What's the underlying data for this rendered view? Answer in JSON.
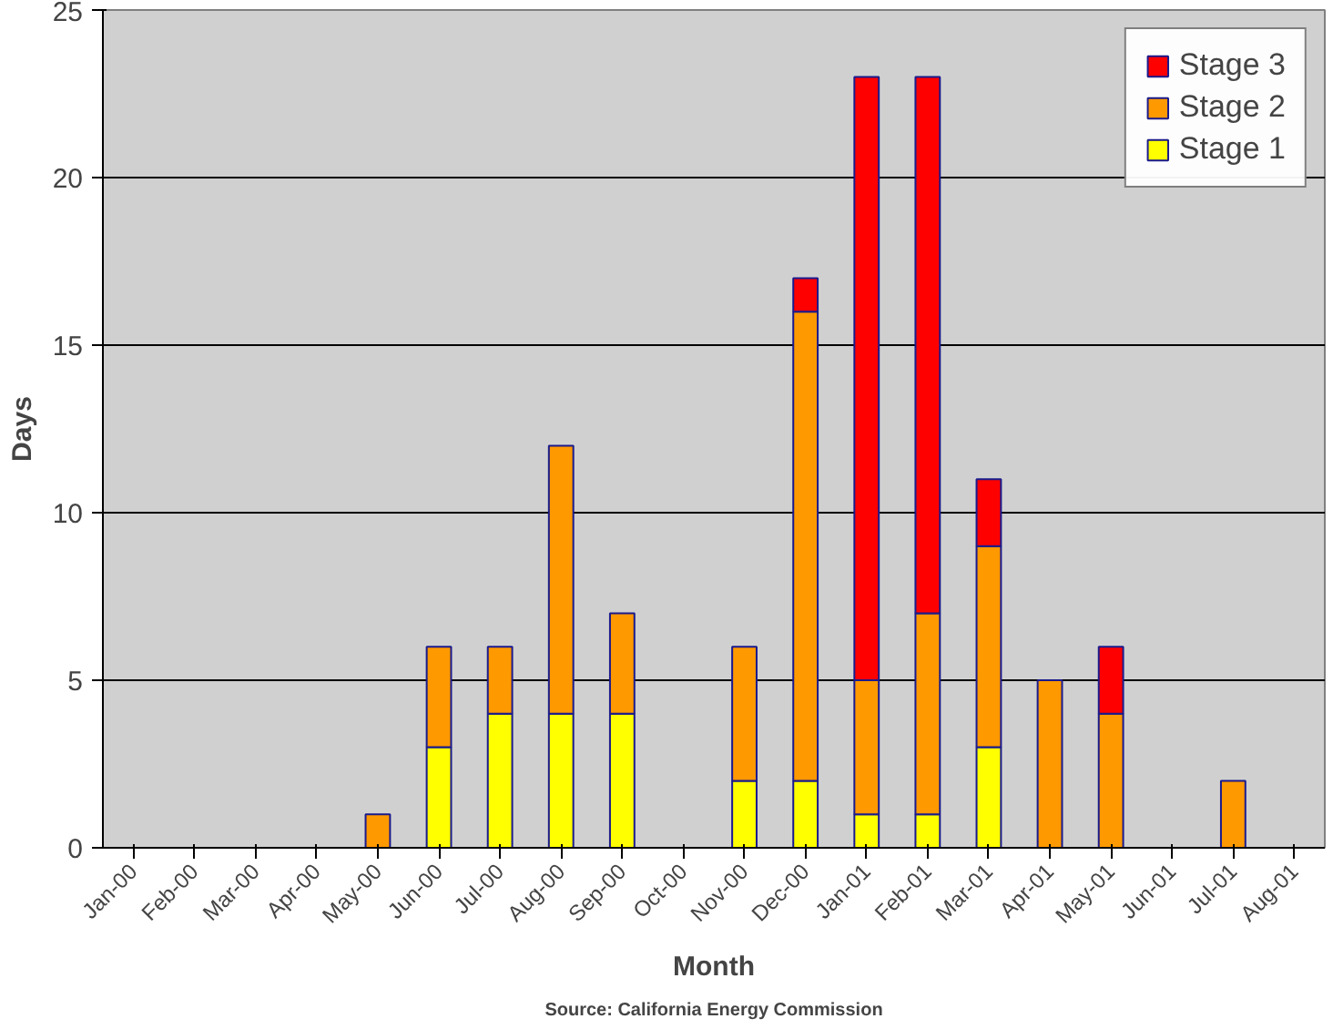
{
  "chart_data": {
    "type": "bar",
    "stacked": true,
    "xlabel": "Month",
    "ylabel": "Days",
    "categories": [
      "Jan-00",
      "Feb-00",
      "Mar-00",
      "Apr-00",
      "May-00",
      "Jun-00",
      "Jul-00",
      "Aug-00",
      "Sep-00",
      "Oct-00",
      "Nov-00",
      "Dec-00",
      "Jan-01",
      "Feb-01",
      "Mar-01",
      "Apr-01",
      "May-01",
      "Jun-01",
      "Jul-01",
      "Aug-01"
    ],
    "series": [
      {
        "name": "Stage 1",
        "color": "#ffff00",
        "values": [
          null,
          null,
          null,
          null,
          null,
          3,
          4,
          4,
          4,
          null,
          2,
          2,
          1,
          1,
          3,
          null,
          null,
          null,
          null,
          null
        ]
      },
      {
        "name": "Stage 2",
        "color": "#ff9900",
        "values": [
          null,
          null,
          null,
          null,
          1,
          3,
          2,
          8,
          3,
          null,
          4,
          14,
          4,
          6,
          6,
          5,
          4,
          null,
          2,
          null
        ]
      },
      {
        "name": "Stage 3",
        "color": "#ff0000",
        "values": [
          null,
          null,
          null,
          null,
          null,
          null,
          null,
          null,
          null,
          null,
          null,
          1,
          18,
          16,
          2,
          null,
          2,
          null,
          null,
          null
        ]
      }
    ],
    "ylim": [
      0,
      25
    ],
    "yticks": [
      0,
      5,
      10,
      15,
      20,
      25
    ],
    "grid": "y",
    "legend": "top right",
    "annotations": [
      "Source: California Energy Commission"
    ]
  }
}
